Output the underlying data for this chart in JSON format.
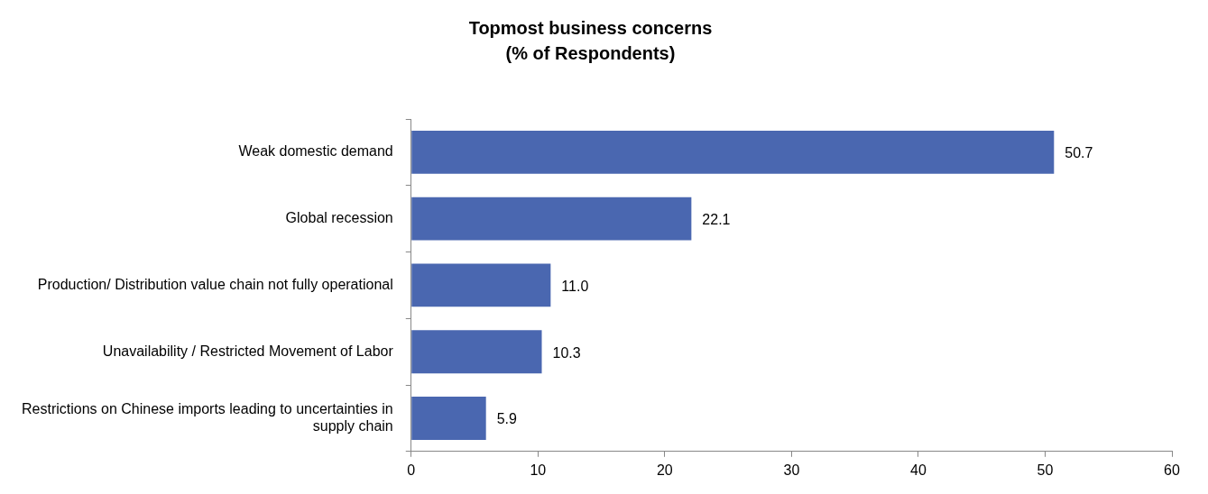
{
  "chart_data": {
    "type": "bar",
    "orientation": "horizontal",
    "title": "Topmost business concerns",
    "subtitle": "(% of Respondents)",
    "categories": [
      "Weak domestic demand",
      "Global recession",
      "Production/ Distribution value chain not fully operational",
      "Unavailability / Restricted Movement of Labor",
      "Restrictions on Chinese imports leading to uncertainties in supply chain"
    ],
    "values": [
      50.7,
      22.1,
      11.0,
      10.3,
      5.9
    ],
    "value_labels": [
      "50.7",
      "22.1",
      "11.0",
      "10.3",
      "5.9"
    ],
    "color": "#4a67b0",
    "xlim": [
      0,
      60
    ],
    "xticks": [
      0,
      10,
      20,
      30,
      40,
      50,
      60
    ],
    "grid": false,
    "legend": false
  }
}
